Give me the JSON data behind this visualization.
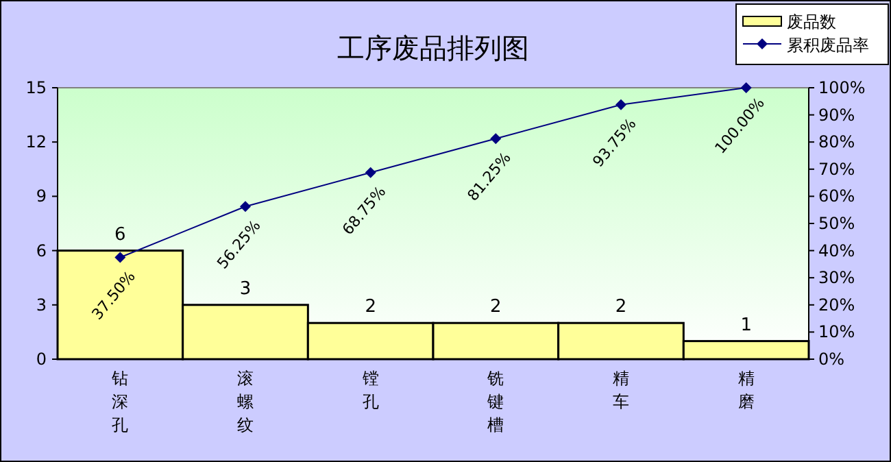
{
  "chart_data": {
    "type": "bar",
    "title": "工序废品排列图",
    "categories": [
      "钻深孔",
      "滚螺纹",
      "镗孔",
      "铣键槽",
      "精车",
      "精磨"
    ],
    "series": [
      {
        "name": "废品数",
        "color": "#ffff99",
        "values": [
          6,
          3,
          2,
          2,
          2,
          1
        ],
        "value_labels": [
          "6",
          "3",
          "2",
          "2",
          "2",
          "1"
        ]
      },
      {
        "name": "累积废品率",
        "type": "line",
        "axis": "y2",
        "color": "#000080",
        "marker": "diamond",
        "values": [
          37.5,
          56.25,
          68.75,
          81.25,
          93.75,
          100
        ],
        "value_labels": [
          "37.50%",
          "56.25%",
          "68.75%",
          "81.25%",
          "93.75%",
          "100.00%"
        ]
      }
    ],
    "ylim": [
      0,
      15
    ],
    "yticks": [
      0,
      3,
      6,
      9,
      12,
      15
    ],
    "y2lim": [
      0,
      100
    ],
    "y2ticks": [
      {
        "value": 0,
        "label": "0%"
      },
      {
        "value": 10,
        "label": "10%"
      },
      {
        "value": 20,
        "label": "20%"
      },
      {
        "value": 30,
        "label": "30%"
      },
      {
        "value": 40,
        "label": "40%"
      },
      {
        "value": 50,
        "label": "50%"
      },
      {
        "value": 60,
        "label": "60%"
      },
      {
        "value": 70,
        "label": "70%"
      },
      {
        "value": 80,
        "label": "80%"
      },
      {
        "value": 90,
        "label": "90%"
      },
      {
        "value": 100,
        "label": "100%"
      }
    ],
    "grid": false,
    "legend": "top right"
  }
}
